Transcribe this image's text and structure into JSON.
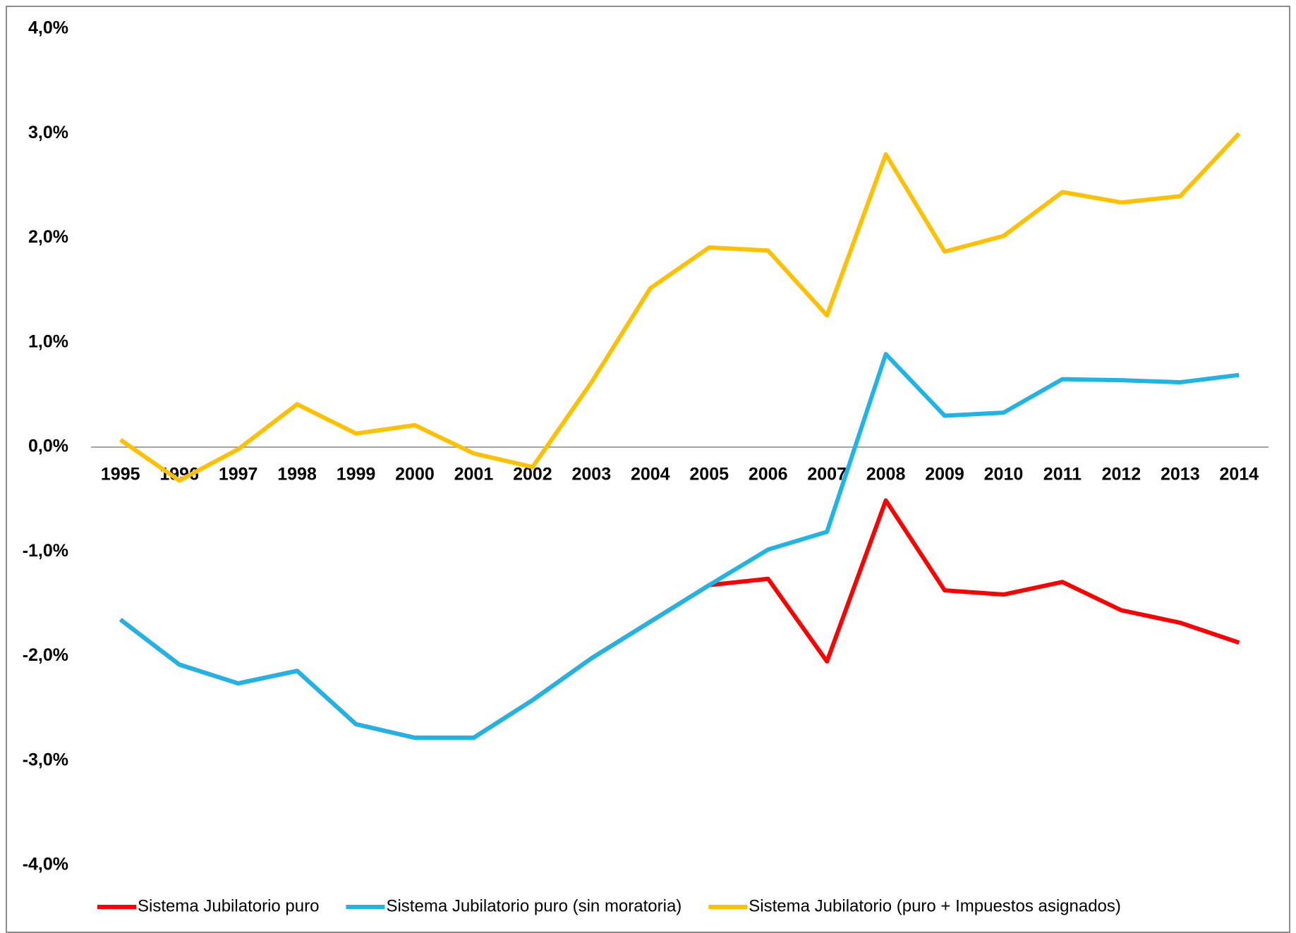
{
  "chart_data": {
    "type": "line",
    "categories": [
      "1995",
      "1996",
      "1997",
      "1998",
      "1999",
      "2000",
      "2001",
      "2002",
      "2003",
      "2004",
      "2005",
      "2006",
      "2007",
      "2008",
      "2009",
      "2010",
      "2011",
      "2012",
      "2013",
      "2014"
    ],
    "series": [
      {
        "name": "Sistema Jubilatorio puro",
        "color": "#ff0000",
        "values": [
          -1.65,
          -2.08,
          -2.26,
          -2.14,
          -2.65,
          -2.78,
          -2.78,
          -2.42,
          -2.02,
          -1.67,
          -1.32,
          -1.26,
          -2.05,
          -0.51,
          -1.37,
          -1.41,
          -1.29,
          -1.56,
          -1.68,
          -1.87
        ]
      },
      {
        "name": "Sistema Jubilatorio puro (sin moratoria)",
        "color": "#1eb4e6",
        "values": [
          -1.65,
          -2.08,
          -2.26,
          -2.14,
          -2.65,
          -2.78,
          -2.78,
          -2.42,
          -2.02,
          -1.67,
          -1.32,
          -0.98,
          -0.81,
          0.89,
          0.3,
          0.33,
          0.65,
          0.64,
          0.62,
          0.69
        ]
      },
      {
        "name": "Sistema Jubilatorio (puro + Impuestos asignados)",
        "color": "#ffc000",
        "values": [
          0.07,
          -0.32,
          -0.02,
          0.41,
          0.13,
          0.21,
          -0.06,
          -0.19,
          0.62,
          1.52,
          1.91,
          1.88,
          1.26,
          2.8,
          1.87,
          2.02,
          2.44,
          2.34,
          2.4,
          3.0
        ]
      }
    ],
    "ylim": [
      -4,
      4
    ],
    "yticks": [
      {
        "value": 4,
        "label": "4,0%"
      },
      {
        "value": 3,
        "label": "3,0%"
      },
      {
        "value": 2,
        "label": "2,0%"
      },
      {
        "value": 1,
        "label": "1,0%"
      },
      {
        "value": 0,
        "label": "0,0%"
      },
      {
        "value": -1,
        "label": "-1,0%"
      },
      {
        "value": -2,
        "label": "-2,0%"
      },
      {
        "value": -3,
        "label": "-3,0%"
      },
      {
        "value": -4,
        "label": "-4,0%"
      }
    ],
    "grid": false,
    "legend": "bottom"
  }
}
